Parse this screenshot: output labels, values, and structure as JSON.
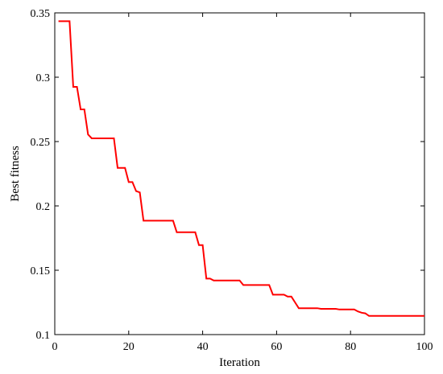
{
  "chart_data": {
    "type": "line",
    "xlabel": "Iteration",
    "ylabel": "Best fitness",
    "xlim": [
      0,
      100
    ],
    "ylim": [
      0.1,
      0.35
    ],
    "xticks": [
      0,
      20,
      40,
      60,
      80,
      100
    ],
    "yticks": [
      0.1,
      0.15,
      0.2,
      0.25,
      0.3,
      0.35
    ],
    "xtick_labels": [
      "0",
      "20",
      "40",
      "60",
      "80",
      "100"
    ],
    "ytick_labels": [
      "0.1",
      "0.15",
      "0.2",
      "0.25",
      "0.3",
      "0.35"
    ],
    "grid": false,
    "legend": "none",
    "series": [
      {
        "color": "#ff0000",
        "x": [
          1,
          2,
          3,
          4,
          5,
          6,
          7,
          8,
          9,
          10,
          11,
          12,
          13,
          14,
          15,
          16,
          17,
          18,
          19,
          20,
          21,
          22,
          23,
          24,
          25,
          26,
          27,
          28,
          29,
          30,
          31,
          32,
          33,
          34,
          35,
          36,
          37,
          38,
          39,
          40,
          41,
          42,
          43,
          44,
          45,
          46,
          47,
          48,
          49,
          50,
          51,
          52,
          53,
          54,
          55,
          56,
          57,
          58,
          59,
          60,
          61,
          62,
          63,
          64,
          65,
          66,
          67,
          68,
          69,
          70,
          71,
          72,
          73,
          74,
          75,
          76,
          77,
          78,
          79,
          80,
          81,
          82,
          83,
          84,
          85,
          86,
          87,
          88,
          89,
          90,
          91,
          92,
          93,
          94,
          95,
          96,
          97,
          98,
          99,
          100
        ],
        "y": [
          0.3435,
          0.3435,
          0.3435,
          0.3435,
          0.2925,
          0.2925,
          0.275,
          0.275,
          0.2555,
          0.2525,
          0.2525,
          0.2525,
          0.2525,
          0.2525,
          0.2525,
          0.2525,
          0.2295,
          0.2295,
          0.2295,
          0.2185,
          0.2185,
          0.2115,
          0.2105,
          0.1885,
          0.1885,
          0.1885,
          0.1885,
          0.1885,
          0.1885,
          0.1885,
          0.1885,
          0.1885,
          0.1795,
          0.1795,
          0.1795,
          0.1795,
          0.1795,
          0.1795,
          0.1695,
          0.1695,
          0.1435,
          0.1435,
          0.142,
          0.142,
          0.142,
          0.142,
          0.142,
          0.142,
          0.142,
          0.142,
          0.1385,
          0.1385,
          0.1385,
          0.1385,
          0.1385,
          0.1385,
          0.1385,
          0.1385,
          0.131,
          0.131,
          0.131,
          0.131,
          0.1295,
          0.1295,
          0.125,
          0.1205,
          0.1205,
          0.1205,
          0.1205,
          0.1205,
          0.1205,
          0.12,
          0.12,
          0.12,
          0.12,
          0.12,
          0.1195,
          0.1195,
          0.1195,
          0.1195,
          0.1195,
          0.118,
          0.117,
          0.1165,
          0.1145,
          0.1145,
          0.1145,
          0.1145,
          0.1145,
          0.1145,
          0.1145,
          0.1145,
          0.1145,
          0.1145,
          0.1145,
          0.1145,
          0.1145,
          0.1145,
          0.1145,
          0.1145
        ]
      }
    ]
  }
}
